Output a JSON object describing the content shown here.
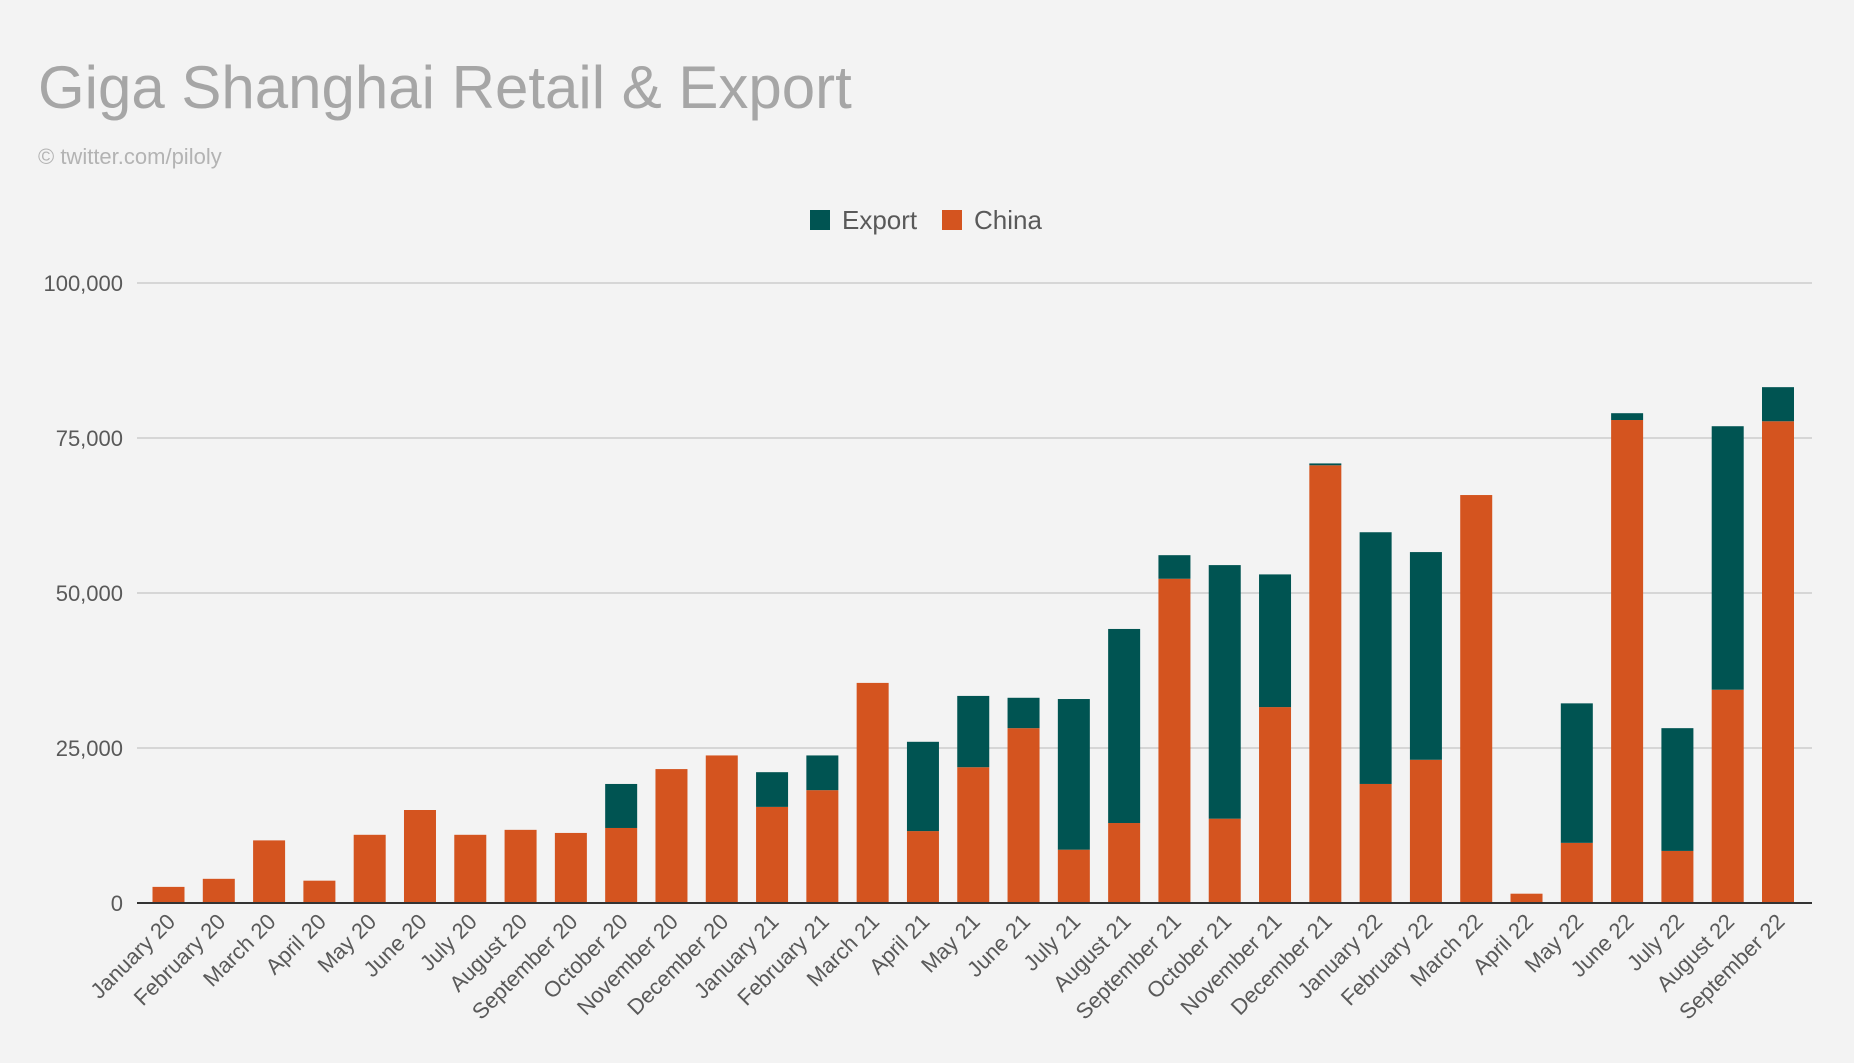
{
  "chart_data": {
    "type": "bar",
    "stacked": true,
    "title": "Giga Shanghai Retail & Export",
    "subtitle": "© twitter.com/piloly",
    "xlabel": "",
    "ylabel": "",
    "ylim": [
      0,
      100000
    ],
    "yticks": [
      0,
      25000,
      50000,
      75000,
      100000
    ],
    "ytick_labels": [
      "0",
      "25,000",
      "50,000",
      "75,000",
      "100,000"
    ],
    "grid": true,
    "legend_position": "top-center",
    "categories": [
      "January 20",
      "February 20",
      "March 20",
      "April 20",
      "May 20",
      "June 20",
      "July 20",
      "August 20",
      "September 20",
      "October 20",
      "November 20",
      "December 20",
      "January 21",
      "February 21",
      "March 21",
      "April 21",
      "May 21",
      "June 21",
      "July 21",
      "August 21",
      "September 21",
      "October 21",
      "November 21",
      "December 21",
      "January 22",
      "February 22",
      "March 22",
      "April 22",
      "May 22",
      "June 22",
      "July 22",
      "August 22",
      "September 22"
    ],
    "series": [
      {
        "name": "China",
        "color": "#d4541f",
        "values": [
          2600,
          3900,
          10100,
          3600,
          11000,
          15000,
          11000,
          11800,
          11300,
          12100,
          21600,
          23800,
          15500,
          18200,
          35500,
          11600,
          21900,
          28200,
          8600,
          12900,
          52300,
          13600,
          31600,
          70600,
          19200,
          23100,
          65800,
          1500,
          9700,
          77900,
          8400,
          34400,
          77700
        ]
      },
      {
        "name": "Export",
        "color": "#005452",
        "values": [
          0,
          0,
          0,
          0,
          0,
          0,
          0,
          0,
          0,
          7100,
          0,
          0,
          5600,
          5600,
          0,
          14400,
          11500,
          4900,
          24300,
          31300,
          3800,
          40900,
          21400,
          300,
          40600,
          33500,
          0,
          0,
          22500,
          1100,
          19800,
          42500,
          5500
        ]
      }
    ]
  }
}
